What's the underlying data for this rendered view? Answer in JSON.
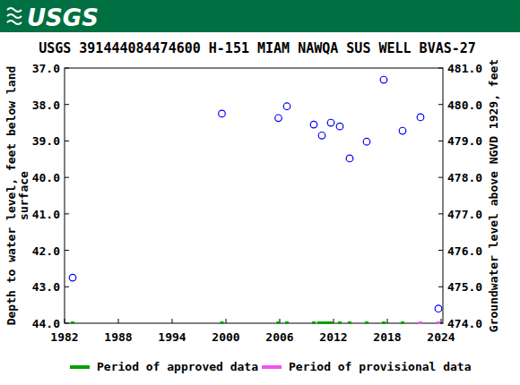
{
  "logo": "USGS",
  "chart_data": {
    "type": "scatter",
    "title": "USGS 391444084474600 H-151 MIAM NAWQA SUS WELL BVAS-27",
    "y_label": [
      "Depth to water level, feet below land",
      "surface"
    ],
    "y2_label": "Groundwater level above NGVD 1929, feet",
    "xlim": [
      1982,
      2024.2
    ],
    "xticks": [
      1982,
      1988,
      1994,
      2000,
      2006,
      2012,
      2018,
      2024
    ],
    "ylim": [
      44,
      37
    ],
    "yticks": [
      {
        "value": 37,
        "label": "37.0"
      },
      {
        "value": 38,
        "label": "38.0"
      },
      {
        "value": 39,
        "label": "39.0"
      },
      {
        "value": 40,
        "label": "40.0"
      },
      {
        "value": 41,
        "label": "41.0"
      },
      {
        "value": 42,
        "label": "42.0"
      },
      {
        "value": 43,
        "label": "43.0"
      },
      {
        "value": 44,
        "label": "44.0"
      }
    ],
    "y2lim": [
      474,
      481
    ],
    "y2ticks": [
      {
        "value": 474,
        "label": "474.0"
      },
      {
        "value": 475,
        "label": "475.0"
      },
      {
        "value": 476,
        "label": "476.0"
      },
      {
        "value": 477,
        "label": "477.0"
      },
      {
        "value": 478,
        "label": "478.0"
      },
      {
        "value": 479,
        "label": "479.0"
      },
      {
        "value": 480,
        "label": "480.0"
      },
      {
        "value": 481,
        "label": "481.0"
      }
    ],
    "grid": false,
    "legend": "bottom",
    "series": [
      {
        "type": "scatter",
        "marker": "open-circle",
        "color": "#0000ff",
        "x": [
          1982.9,
          1999.55,
          2005.85,
          2006.8,
          2009.8,
          2010.7,
          2011.7,
          2012.7,
          2013.8,
          2015.7,
          2017.6,
          2019.7,
          2021.7,
          2023.7
        ],
        "values": [
          42.75,
          38.25,
          38.37,
          38.05,
          38.55,
          38.85,
          38.5,
          38.6,
          39.48,
          39.02,
          37.32,
          38.72,
          38.35,
          43.6
        ]
      },
      {
        "type": "period",
        "name": "Period of approved data",
        "color": "#00a000",
        "x": [
          1982.9,
          1999.55,
          2005.85,
          2006.8,
          2009.8,
          2010.4,
          2010.7,
          2011.0,
          2011.3,
          2011.7,
          2012.7,
          2013.8,
          2015.7,
          2017.6,
          2019.7
        ]
      },
      {
        "type": "period",
        "name": "Period of provisional data",
        "color": "#ee55ee",
        "x": [
          2021.7,
          2023.7
        ]
      }
    ]
  }
}
